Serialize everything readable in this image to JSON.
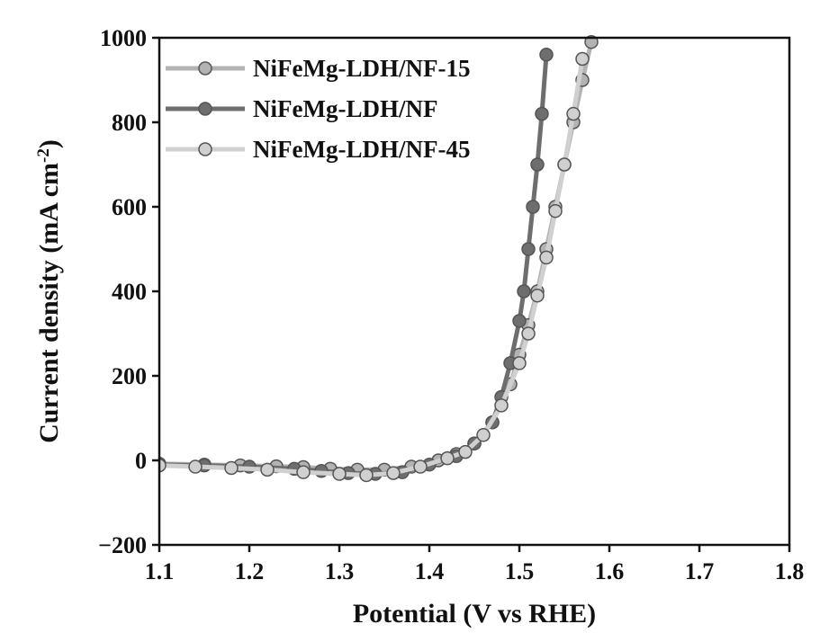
{
  "chart_data": {
    "type": "line",
    "title": "",
    "xlabel": "Potential (V vs RHE)",
    "ylabel_main": "Current density (mA cm",
    "ylabel_sup": "-2",
    "ylabel_close": ")",
    "xlim": [
      1.1,
      1.8
    ],
    "ylim": [
      -200,
      1000
    ],
    "xticks": [
      "1.1",
      "1.2",
      "1.3",
      "1.4",
      "1.5",
      "1.6",
      "1.7",
      "1.8"
    ],
    "xtick_values": [
      1.1,
      1.2,
      1.3,
      1.4,
      1.5,
      1.6,
      1.7,
      1.8
    ],
    "yticks": [
      "−200",
      "0",
      "200",
      "400",
      "600",
      "800",
      "1000"
    ],
    "ytick_values": [
      -200,
      0,
      200,
      400,
      600,
      800,
      1000
    ],
    "legend_position": "top-left",
    "grid": false,
    "series": [
      {
        "name": "NiFeMg-LDH/NF-15",
        "color": "#b3b3b3",
        "x": [
          1.1,
          1.15,
          1.19,
          1.23,
          1.26,
          1.29,
          1.32,
          1.35,
          1.38,
          1.41,
          1.43,
          1.45,
          1.47,
          1.49,
          1.5,
          1.51,
          1.52,
          1.53,
          1.54,
          1.55,
          1.56,
          1.57,
          1.58
        ],
        "y": [
          -8,
          -10,
          -12,
          -14,
          -16,
          -20,
          -22,
          -22,
          -15,
          0,
          15,
          40,
          90,
          180,
          250,
          320,
          400,
          500,
          600,
          700,
          800,
          900,
          990
        ]
      },
      {
        "name": "NiFeMg-LDH/NF",
        "color": "#6e6e6e",
        "x": [
          1.1,
          1.15,
          1.2,
          1.25,
          1.28,
          1.31,
          1.34,
          1.37,
          1.4,
          1.43,
          1.45,
          1.47,
          1.48,
          1.49,
          1.5,
          1.505,
          1.51,
          1.515,
          1.52,
          1.525,
          1.53
        ],
        "y": [
          -10,
          -12,
          -15,
          -20,
          -25,
          -30,
          -32,
          -28,
          -10,
          10,
          40,
          90,
          150,
          230,
          330,
          400,
          500,
          600,
          700,
          820,
          960
        ]
      },
      {
        "name": "NiFeMg-LDH/NF-45",
        "color": "#d0d0d0",
        "x": [
          1.1,
          1.14,
          1.18,
          1.22,
          1.26,
          1.3,
          1.33,
          1.36,
          1.39,
          1.42,
          1.44,
          1.46,
          1.48,
          1.5,
          1.51,
          1.52,
          1.53,
          1.54,
          1.55,
          1.56,
          1.57
        ],
        "y": [
          -12,
          -15,
          -18,
          -22,
          -28,
          -32,
          -35,
          -30,
          -15,
          5,
          20,
          60,
          130,
          230,
          300,
          390,
          480,
          590,
          700,
          820,
          950
        ]
      }
    ]
  }
}
